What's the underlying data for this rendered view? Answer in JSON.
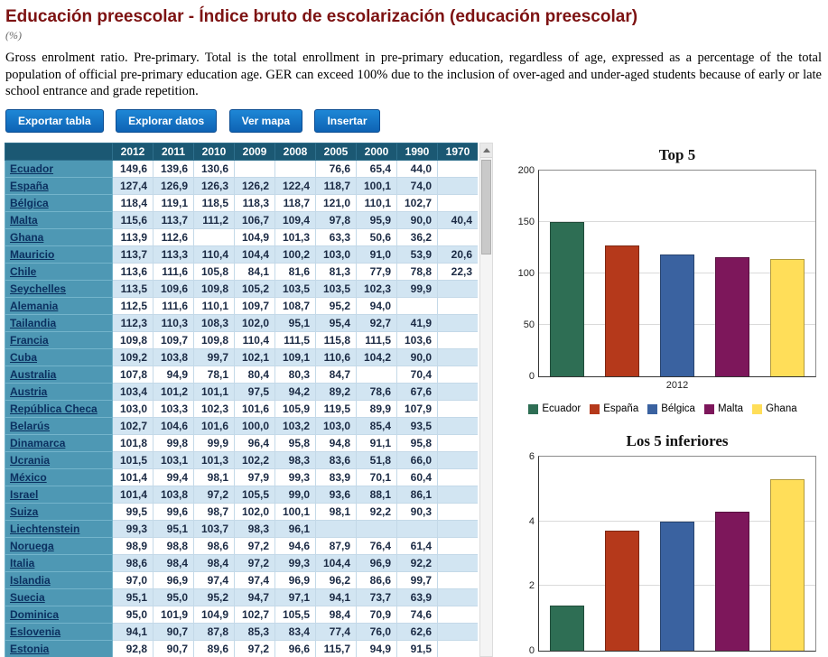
{
  "header": {
    "title": "Educación preescolar - Índice bruto de escolarización (educación preescolar)",
    "unit": "(%)",
    "description": "Gross enrolment ratio. Pre-primary. Total is the total enrollment in pre-primary education, regardless of age, expressed as a percentage of the total population of official pre-primary education age. GER can exceed 100% due to the inclusion of over-aged and under-aged students because of early or late school entrance and grade repetition."
  },
  "toolbar": {
    "buttons": [
      "Exportar tabla",
      "Explorar datos",
      "Ver mapa",
      "Insertar"
    ]
  },
  "table": {
    "year_columns": [
      "2012",
      "2011",
      "2010",
      "2009",
      "2008",
      "2005",
      "2000",
      "1990",
      "1970"
    ],
    "rows": [
      {
        "country": "Ecuador",
        "values": [
          "149,6",
          "139,6",
          "130,6",
          "",
          "",
          "76,6",
          "65,4",
          "44,0",
          ""
        ]
      },
      {
        "country": "España",
        "values": [
          "127,4",
          "126,9",
          "126,3",
          "126,2",
          "122,4",
          "118,7",
          "100,1",
          "74,0",
          ""
        ]
      },
      {
        "country": "Bélgica",
        "values": [
          "118,4",
          "119,1",
          "118,5",
          "118,3",
          "118,7",
          "121,0",
          "110,1",
          "102,7",
          ""
        ]
      },
      {
        "country": "Malta",
        "values": [
          "115,6",
          "113,7",
          "111,2",
          "106,7",
          "109,4",
          "97,8",
          "95,9",
          "90,0",
          "40,4"
        ]
      },
      {
        "country": "Ghana",
        "values": [
          "113,9",
          "112,6",
          "",
          "104,9",
          "101,3",
          "63,3",
          "50,6",
          "36,2",
          ""
        ]
      },
      {
        "country": "Mauricio",
        "values": [
          "113,7",
          "113,3",
          "110,4",
          "104,4",
          "100,2",
          "103,0",
          "91,0",
          "53,9",
          "20,6"
        ]
      },
      {
        "country": "Chile",
        "values": [
          "113,6",
          "111,6",
          "105,8",
          "84,1",
          "81,6",
          "81,3",
          "77,9",
          "78,8",
          "22,3"
        ]
      },
      {
        "country": "Seychelles",
        "values": [
          "113,5",
          "109,6",
          "109,8",
          "105,2",
          "103,5",
          "103,5",
          "102,3",
          "99,9",
          ""
        ]
      },
      {
        "country": "Alemania",
        "values": [
          "112,5",
          "111,6",
          "110,1",
          "109,7",
          "108,7",
          "95,2",
          "94,0",
          "",
          ""
        ]
      },
      {
        "country": "Tailandia",
        "values": [
          "112,3",
          "110,3",
          "108,3",
          "102,0",
          "95,1",
          "95,4",
          "92,7",
          "41,9",
          ""
        ]
      },
      {
        "country": "Francia",
        "values": [
          "109,8",
          "109,7",
          "109,8",
          "110,4",
          "111,5",
          "115,8",
          "111,5",
          "103,6",
          ""
        ]
      },
      {
        "country": "Cuba",
        "values": [
          "109,2",
          "103,8",
          "99,7",
          "102,1",
          "109,1",
          "110,6",
          "104,2",
          "90,0",
          ""
        ]
      },
      {
        "country": "Australia",
        "values": [
          "107,8",
          "94,9",
          "78,1",
          "80,4",
          "80,3",
          "84,7",
          "",
          "70,4",
          ""
        ]
      },
      {
        "country": "Austria",
        "values": [
          "103,4",
          "101,2",
          "101,1",
          "97,5",
          "94,2",
          "89,2",
          "78,6",
          "67,6",
          ""
        ]
      },
      {
        "country": "República Checa",
        "values": [
          "103,0",
          "103,3",
          "102,3",
          "101,6",
          "105,9",
          "119,5",
          "89,9",
          "107,9",
          ""
        ]
      },
      {
        "country": "Belarús",
        "values": [
          "102,7",
          "104,6",
          "101,6",
          "100,0",
          "103,2",
          "103,0",
          "85,4",
          "93,5",
          ""
        ]
      },
      {
        "country": "Dinamarca",
        "values": [
          "101,8",
          "99,8",
          "99,9",
          "96,4",
          "95,8",
          "94,8",
          "91,1",
          "95,8",
          ""
        ]
      },
      {
        "country": "Ucrania",
        "values": [
          "101,5",
          "103,1",
          "101,3",
          "102,2",
          "98,3",
          "83,6",
          "51,8",
          "66,0",
          ""
        ]
      },
      {
        "country": "México",
        "values": [
          "101,4",
          "99,4",
          "98,1",
          "97,9",
          "99,3",
          "83,9",
          "70,1",
          "60,4",
          ""
        ]
      },
      {
        "country": "Israel",
        "values": [
          "101,4",
          "103,8",
          "97,2",
          "105,5",
          "99,0",
          "93,6",
          "88,1",
          "86,1",
          ""
        ]
      },
      {
        "country": "Suiza",
        "values": [
          "99,5",
          "99,6",
          "98,7",
          "102,0",
          "100,1",
          "98,1",
          "92,2",
          "90,3",
          ""
        ]
      },
      {
        "country": "Liechtenstein",
        "values": [
          "99,3",
          "95,1",
          "103,7",
          "98,3",
          "96,1",
          "",
          "",
          "",
          ""
        ]
      },
      {
        "country": "Noruega",
        "values": [
          "98,9",
          "98,8",
          "98,6",
          "97,2",
          "94,6",
          "87,9",
          "76,4",
          "61,4",
          ""
        ]
      },
      {
        "country": "Italia",
        "values": [
          "98,6",
          "98,4",
          "98,4",
          "97,2",
          "99,3",
          "104,4",
          "96,9",
          "92,2",
          ""
        ]
      },
      {
        "country": "Islandia",
        "values": [
          "97,0",
          "96,9",
          "97,4",
          "97,4",
          "96,9",
          "96,2",
          "86,6",
          "99,7",
          ""
        ]
      },
      {
        "country": "Suecia",
        "values": [
          "95,1",
          "95,0",
          "95,2",
          "94,7",
          "97,1",
          "94,1",
          "73,7",
          "63,9",
          ""
        ]
      },
      {
        "country": "Dominica",
        "values": [
          "95,0",
          "101,9",
          "104,9",
          "102,7",
          "105,5",
          "98,4",
          "70,9",
          "74,6",
          ""
        ]
      },
      {
        "country": "Eslovenia",
        "values": [
          "94,1",
          "90,7",
          "87,8",
          "85,3",
          "83,4",
          "77,4",
          "76,0",
          "62,6",
          ""
        ]
      },
      {
        "country": "Estonia",
        "values": [
          "92,8",
          "90,7",
          "89,6",
          "97,2",
          "96,6",
          "115,7",
          "94,9",
          "91,5",
          ""
        ]
      }
    ]
  },
  "chart_data": [
    {
      "type": "bar",
      "title": "Top 5",
      "categories": [
        "Ecuador",
        "España",
        "Bélgica",
        "Malta",
        "Ghana"
      ],
      "values": [
        149.6,
        127.4,
        118.4,
        115.6,
        113.9
      ],
      "colors": [
        "#2E6E54",
        "#B5391B",
        "#3A62A0",
        "#7D175B",
        "#FFDE59"
      ],
      "xlabel": "2012",
      "ylabel": "",
      "ylim": [
        0,
        200
      ],
      "yticks": [
        0,
        50,
        100,
        150,
        200
      ],
      "grid": true,
      "legend_position": "bottom"
    },
    {
      "type": "bar",
      "title": "Los 5 inferiores",
      "values": [
        1.4,
        3.7,
        4.0,
        4.3,
        5.3
      ],
      "colors": [
        "#2E6E54",
        "#B5391B",
        "#3A62A0",
        "#7D175B",
        "#FFDE59"
      ],
      "xlabel": "",
      "ylabel": "",
      "ylim": [
        0,
        6
      ],
      "yticks": [
        0,
        2,
        4,
        6
      ],
      "grid": true
    }
  ],
  "colors": {
    "title": "#7D1212",
    "button": "#1173C6",
    "table_header_bg": "#1B5873",
    "country_column_bg": "#4E98B4",
    "row_alt_bg": "#D2E5F2",
    "link": "#0B3060",
    "series": [
      "#2E6E54",
      "#B5391B",
      "#3A62A0",
      "#7D175B",
      "#FFDE59"
    ]
  }
}
